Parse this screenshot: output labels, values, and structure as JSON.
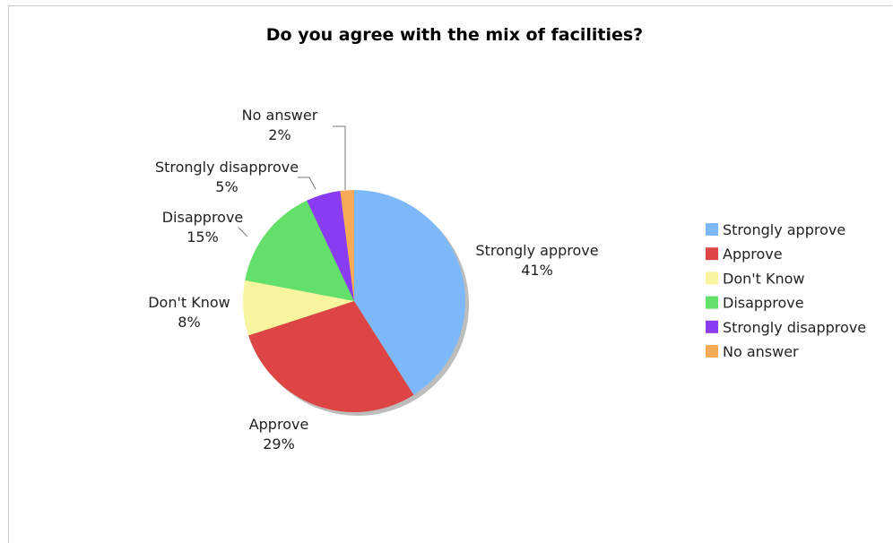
{
  "chart_data": {
    "type": "pie",
    "title": "Do you agree with the mix of facilities?",
    "categories": [
      "Strongly approve",
      "Approve",
      "Don't Know",
      "Disapprove",
      "Strongly disapprove",
      "No answer"
    ],
    "values": [
      41,
      29,
      8,
      15,
      5,
      2
    ],
    "value_labels": [
      "41%",
      "29%",
      "8%",
      "15%",
      "5%",
      "2%"
    ],
    "colors": [
      "#7db8f8",
      "#dd4545",
      "#f8f59e",
      "#62e06a",
      "#8a3cf2",
      "#f6aa55"
    ],
    "legend_position": "right",
    "start_angle_deg": 0,
    "direction": "clockwise"
  }
}
